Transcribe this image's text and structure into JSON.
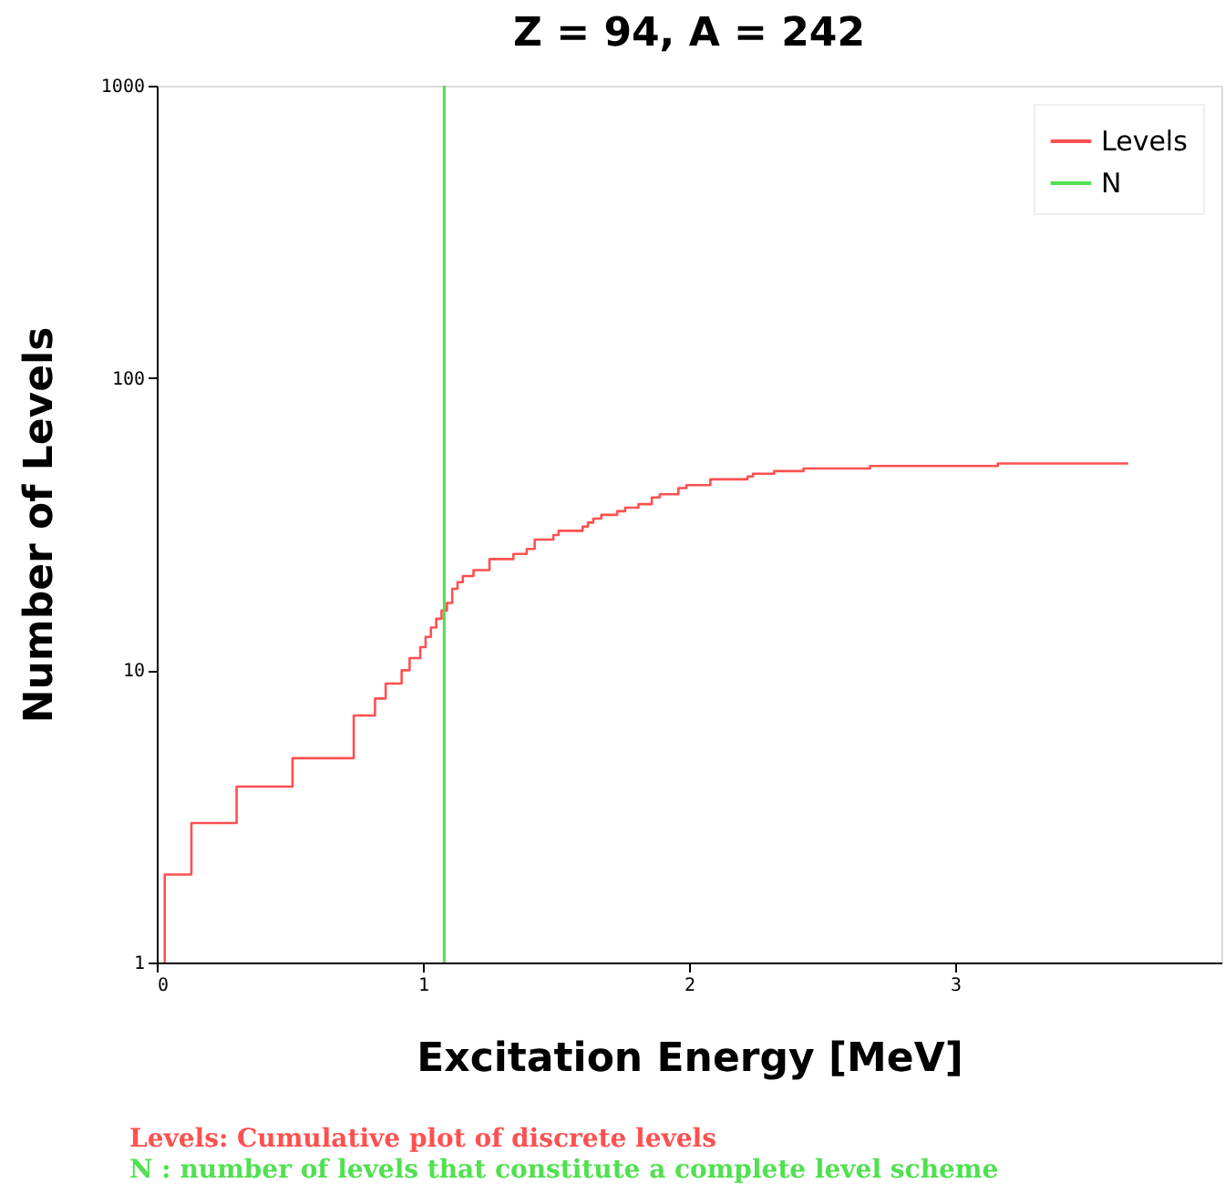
{
  "chart_data": {
    "type": "step",
    "title": "Z = 94, A = 242",
    "xlabel": "Excitation Energy [MeV]",
    "ylabel": "Number of Levels",
    "log": "y",
    "xlim": [
      0,
      4
    ],
    "xticks": [
      0,
      1,
      2,
      3
    ],
    "ylim": [
      1,
      1000
    ],
    "yticks": [
      1,
      10,
      100,
      1000
    ],
    "grid": false,
    "legend": "top right",
    "series": [
      {
        "name": "Levels",
        "color": "#ff5050",
        "x": [
          0.03,
          0.03,
          0.13,
          0.3,
          0.51,
          0.74,
          0.82,
          0.86,
          0.92,
          0.95,
          0.99,
          1.01,
          1.03,
          1.05,
          1.07,
          1.09,
          1.11,
          1.13,
          1.15,
          1.19,
          1.25,
          1.34,
          1.39,
          1.42,
          1.49,
          1.51,
          1.6,
          1.62,
          1.64,
          1.67,
          1.73,
          1.76,
          1.81,
          1.86,
          1.89,
          1.96,
          1.99,
          2.08,
          2.22,
          2.24,
          2.32,
          2.43,
          2.68,
          3.16,
          3.65
        ],
        "values": [
          1,
          2,
          3,
          4,
          5,
          7,
          8,
          9,
          10,
          11,
          12,
          13,
          14,
          15,
          16,
          17,
          19,
          20,
          21,
          22,
          24,
          25,
          26,
          28,
          29,
          30,
          31,
          32,
          33,
          34,
          35,
          36,
          37,
          39,
          40,
          42,
          43,
          45,
          46,
          47,
          48,
          49,
          50,
          51,
          51
        ]
      },
      {
        "name": "N",
        "type": "line",
        "color": "#50e050",
        "x": [
          1.08,
          1.08
        ],
        "values": [
          1,
          1000
        ]
      }
    ],
    "annotations": [
      "Levels: Cumulative plot of discrete levels",
      "N  : number of levels that constitute a complete level scheme"
    ]
  }
}
